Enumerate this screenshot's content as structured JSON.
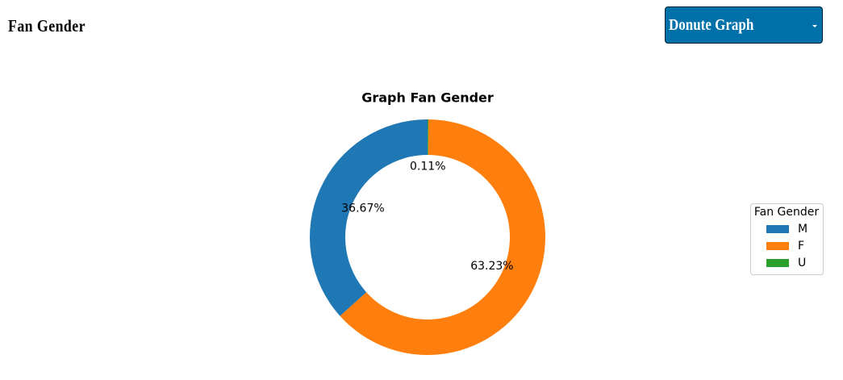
{
  "header": {
    "title": "Fan Gender"
  },
  "dropdown": {
    "label": "Donute Graph"
  },
  "chart_data": {
    "type": "donut",
    "title": "Graph Fan Gender",
    "categories": [
      "M",
      "F",
      "U"
    ],
    "values": [
      36.67,
      63.23,
      0.11
    ],
    "value_labels": [
      "36.67%",
      "63.23%",
      "0.11%"
    ],
    "colors": [
      "#1f77b4",
      "#ff7f0e",
      "#2ca02c"
    ],
    "legend_title": "Fan Gender",
    "legend": "right"
  }
}
